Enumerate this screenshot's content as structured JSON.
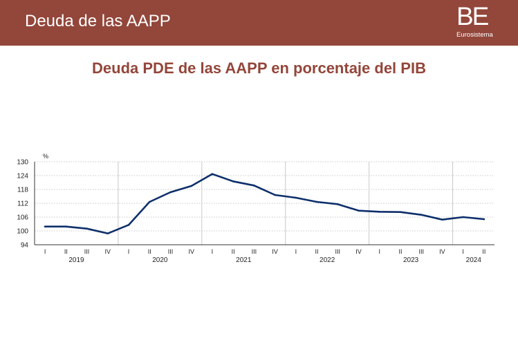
{
  "header": {
    "title": "Deuda de las AAPP",
    "logo_text": "BE",
    "logo_sub": "Eurosistema"
  },
  "colors": {
    "header_bg": "#93463a",
    "title_color": "#93463a",
    "line_color": "#0d2f6b",
    "grid_color": "#c8c8c8"
  },
  "chart_data": {
    "type": "line",
    "title": "Deuda PDE de las AAPP en porcentaje del PIB",
    "xlabel": "",
    "ylabel": "%",
    "ylim": [
      94,
      130
    ],
    "yticks": [
      94,
      100,
      106,
      112,
      118,
      124,
      130
    ],
    "x": [
      "I",
      "II",
      "III",
      "IV",
      "I",
      "II",
      "III",
      "IV",
      "I",
      "II",
      "III",
      "IV",
      "I",
      "II",
      "III",
      "IV",
      "I",
      "II",
      "III",
      "IV",
      "I",
      "II"
    ],
    "years": [
      {
        "label": "2019",
        "start": 0,
        "end": 3
      },
      {
        "label": "2020",
        "start": 4,
        "end": 7
      },
      {
        "label": "2021",
        "start": 8,
        "end": 11
      },
      {
        "label": "2022",
        "start": 12,
        "end": 15
      },
      {
        "label": "2023",
        "start": 16,
        "end": 19
      },
      {
        "label": "2024",
        "start": 20,
        "end": 21
      }
    ],
    "series": [
      {
        "values": [
          101.9,
          101.9,
          101.0,
          98.9,
          102.6,
          112.6,
          116.8,
          119.5,
          124.7,
          121.5,
          119.7,
          115.6,
          114.4,
          112.6,
          111.6,
          108.8,
          108.3,
          108.2,
          107.0,
          104.9,
          106.0,
          105.1
        ]
      }
    ],
    "grid": true,
    "legend": "none"
  }
}
